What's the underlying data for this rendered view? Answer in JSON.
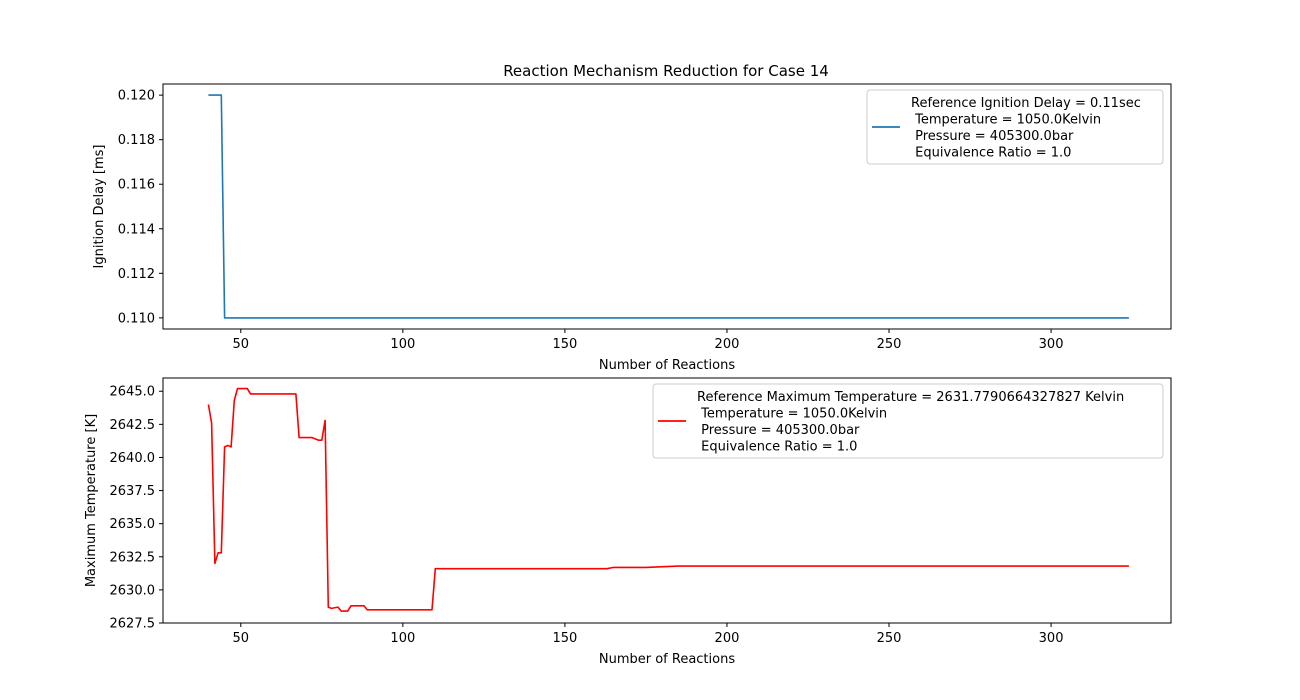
{
  "figure_title": "Reaction Mechanism Reduction for Case 14",
  "chart_data": [
    {
      "type": "line",
      "title": "Reaction Mechanism Reduction for Case 14",
      "xlabel": "Number of Reactions",
      "ylabel": "Ignition Delay [ms]",
      "xlim": [
        26,
        337
      ],
      "ylim": [
        0.1095,
        0.1205
      ],
      "xticks": [
        "50",
        "100",
        "150",
        "200",
        "250",
        "300"
      ],
      "xtick_values": [
        50,
        100,
        150,
        200,
        250,
        300
      ],
      "yticks": [
        "0.110",
        "0.112",
        "0.114",
        "0.116",
        "0.118",
        "0.120"
      ],
      "ytick_values": [
        0.11,
        0.112,
        0.114,
        0.116,
        0.118,
        0.12
      ],
      "grid": false,
      "legend_position": "upper-right",
      "series": [
        {
          "name": "ignition-delay",
          "color": "#1f77b4",
          "legend_lines": [
            "Reference Ignition Delay = 0.11sec",
            " Temperature = 1050.0Kelvin",
            " Pressure = 405300.0bar",
            " Equivalence Ratio = 1.0"
          ],
          "x": [
            40,
            44,
            45,
            324
          ],
          "y": [
            0.12,
            0.12,
            0.11,
            0.11
          ]
        }
      ]
    },
    {
      "type": "line",
      "title": "",
      "xlabel": "Number of Reactions",
      "ylabel": "Maximum Temperature [K]",
      "xlim": [
        26,
        337
      ],
      "ylim": [
        2627.5,
        2646.0
      ],
      "xticks": [
        "50",
        "100",
        "150",
        "200",
        "250",
        "300"
      ],
      "xtick_values": [
        50,
        100,
        150,
        200,
        250,
        300
      ],
      "yticks": [
        "2627.5",
        "2630.0",
        "2632.5",
        "2635.0",
        "2637.5",
        "2640.0",
        "2642.5",
        "2645.0"
      ],
      "ytick_values": [
        2627.5,
        2630.0,
        2632.5,
        2635.0,
        2637.5,
        2640.0,
        2642.5,
        2645.0
      ],
      "grid": false,
      "legend_position": "upper-right",
      "series": [
        {
          "name": "maximum-temperature",
          "color": "#ff0000",
          "legend_lines": [
            "Reference Maximum Temperature = 2631.7790664327827 Kelvin",
            " Temperature = 1050.0Kelvin",
            " Pressure = 405300.0bar",
            " Equivalence Ratio = 1.0"
          ],
          "x": [
            40,
            41,
            42,
            43,
            44,
            45,
            46,
            47,
            48,
            49,
            50,
            51,
            52,
            53,
            55,
            60,
            65,
            67,
            68,
            70,
            72,
            74,
            75,
            76,
            77,
            78,
            80,
            81,
            83,
            84,
            86,
            88,
            89,
            90,
            95,
            100,
            105,
            109,
            110,
            111,
            120,
            140,
            160,
            163,
            165,
            175,
            185,
            200,
            212,
            214,
            230,
            250,
            266,
            268,
            300,
            324
          ],
          "y": [
            2644.0,
            2642.6,
            2632.0,
            2632.8,
            2632.8,
            2640.8,
            2640.9,
            2640.8,
            2644.3,
            2645.2,
            2645.2,
            2645.2,
            2645.2,
            2644.8,
            2644.8,
            2644.8,
            2644.8,
            2644.8,
            2641.5,
            2641.5,
            2641.5,
            2641.3,
            2641.3,
            2642.8,
            2628.7,
            2628.6,
            2628.7,
            2628.4,
            2628.4,
            2628.8,
            2628.8,
            2628.8,
            2628.5,
            2628.5,
            2628.5,
            2628.5,
            2628.5,
            2628.5,
            2631.6,
            2631.6,
            2631.6,
            2631.6,
            2631.6,
            2631.6,
            2631.7,
            2631.7,
            2631.8,
            2631.8,
            2631.8,
            2631.8,
            2631.8,
            2631.8,
            2631.8,
            2631.8,
            2631.8,
            2631.8
          ]
        }
      ]
    }
  ]
}
